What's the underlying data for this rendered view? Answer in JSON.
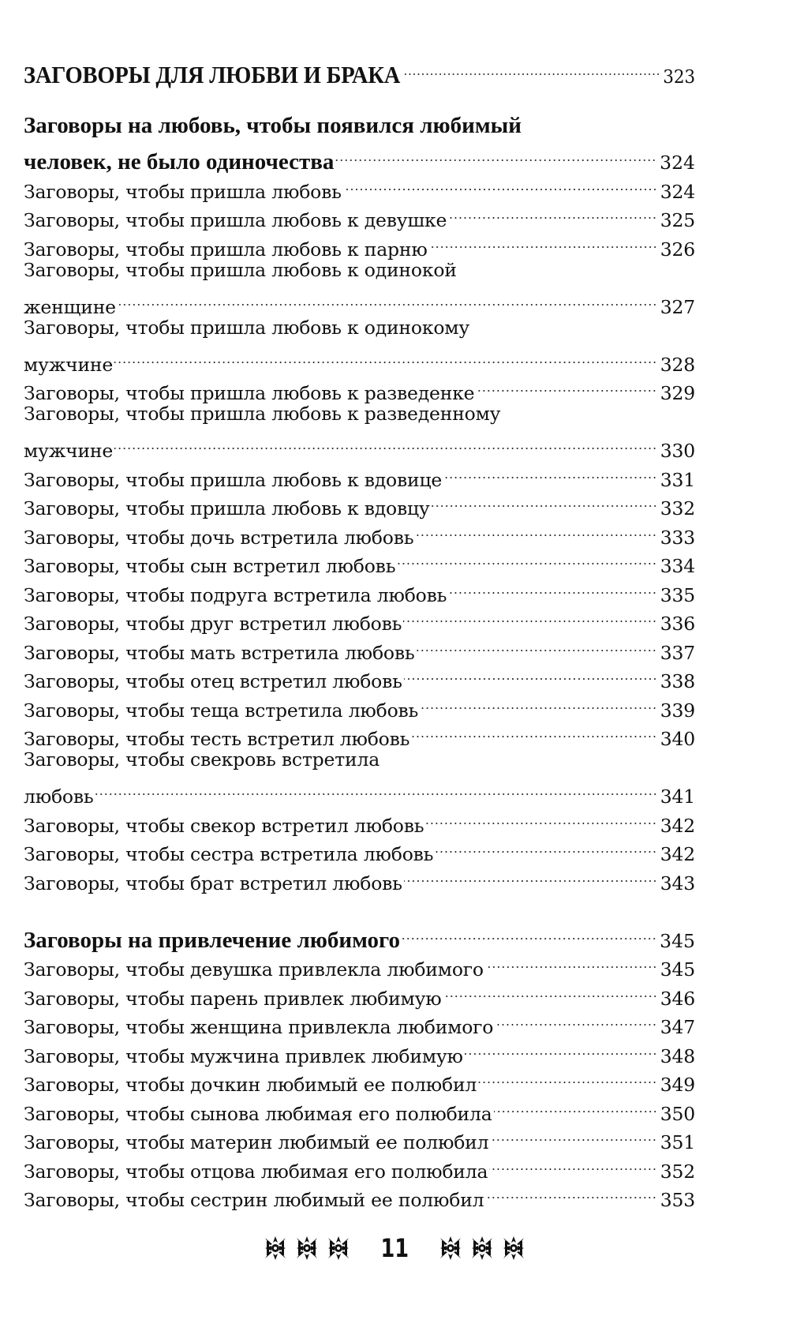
{
  "chapter": {
    "title": "ЗАГОВОРЫ ДЛЯ ЛЮБВИ И БРАКА",
    "page": "323"
  },
  "sections": [
    {
      "heading": {
        "lines": [
          "Заговоры на любовь, чтобы появился любимый",
          "человек, не было одиночества"
        ],
        "page": "324"
      },
      "entries": [
        {
          "lines": [
            "Заговоры, чтобы пришла любовь"
          ],
          "page": "324"
        },
        {
          "lines": [
            "Заговоры, чтобы пришла любовь к девушке"
          ],
          "page": "325"
        },
        {
          "lines": [
            "Заговоры, чтобы пришла любовь к парню"
          ],
          "page": "326"
        },
        {
          "lines": [
            "Заговоры, чтобы пришла любовь к одинокой",
            "женщине"
          ],
          "page": "327"
        },
        {
          "lines": [
            "Заговоры, чтобы пришла любовь к одинокому",
            "мужчине"
          ],
          "page": "328"
        },
        {
          "lines": [
            "Заговоры, чтобы пришла любовь к разведенке"
          ],
          "page": "329"
        },
        {
          "lines": [
            "Заговоры, чтобы пришла любовь к разведенному",
            "мужчине"
          ],
          "page": "330"
        },
        {
          "lines": [
            "Заговоры, чтобы пришла любовь к вдовице"
          ],
          "page": "331"
        },
        {
          "lines": [
            "Заговоры, чтобы пришла любовь к вдовцу"
          ],
          "page": "332"
        },
        {
          "lines": [
            "Заговоры, чтобы дочь встретила любовь"
          ],
          "page": "333"
        },
        {
          "lines": [
            "Заговоры, чтобы сын встретил любовь"
          ],
          "page": "334"
        },
        {
          "lines": [
            "Заговоры, чтобы подруга встретила любовь"
          ],
          "page": "335"
        },
        {
          "lines": [
            "Заговоры, чтобы друг встретил любовь"
          ],
          "page": "336"
        },
        {
          "lines": [
            "Заговоры, чтобы мать встретила любовь"
          ],
          "page": "337"
        },
        {
          "lines": [
            "Заговоры, чтобы отец встретил любовь"
          ],
          "page": "338"
        },
        {
          "lines": [
            "Заговоры, чтобы теща встретила любовь"
          ],
          "page": "339"
        },
        {
          "lines": [
            "Заговоры, чтобы тесть встретил любовь"
          ],
          "page": "340"
        },
        {
          "lines": [
            "Заговоры, чтобы свекровь встретила",
            "любовь"
          ],
          "page": "341"
        },
        {
          "lines": [
            "Заговоры, чтобы свекор встретил любовь"
          ],
          "page": "342"
        },
        {
          "lines": [
            "Заговоры, чтобы сестра встретила любовь"
          ],
          "page": "342"
        },
        {
          "lines": [
            "Заговоры, чтобы брат встретил любовь"
          ],
          "page": "343"
        }
      ]
    },
    {
      "heading": {
        "lines": [
          "Заговоры на привлечение любимого"
        ],
        "page": "345"
      },
      "entries": [
        {
          "lines": [
            "Заговоры, чтобы девушка привлекла любимого"
          ],
          "page": "345"
        },
        {
          "lines": [
            "Заговоры, чтобы парень привлек любимую"
          ],
          "page": "346"
        },
        {
          "lines": [
            "Заговоры, чтобы женщина привлекла любимого"
          ],
          "page": "347"
        },
        {
          "lines": [
            "Заговоры, чтобы мужчина привлек любимую"
          ],
          "page": "348"
        },
        {
          "lines": [
            "Заговоры, чтобы дочкин любимый ее полюбил"
          ],
          "page": "349"
        },
        {
          "lines": [
            "Заговоры, чтобы сынова любимая его полюбила"
          ],
          "page": "350"
        },
        {
          "lines": [
            "Заговоры, чтобы материн любимый ее полюбил"
          ],
          "page": "351"
        },
        {
          "lines": [
            "Заговоры, чтобы отцова любимая его полюбила"
          ],
          "page": "352"
        },
        {
          "lines": [
            "Заговоры, чтобы сестрин любимый ее полюбил"
          ],
          "page": "353"
        }
      ]
    }
  ],
  "footer": {
    "page_number": "11",
    "ornament_icon": "floral-ornament",
    "ornaments_per_side": 3
  }
}
